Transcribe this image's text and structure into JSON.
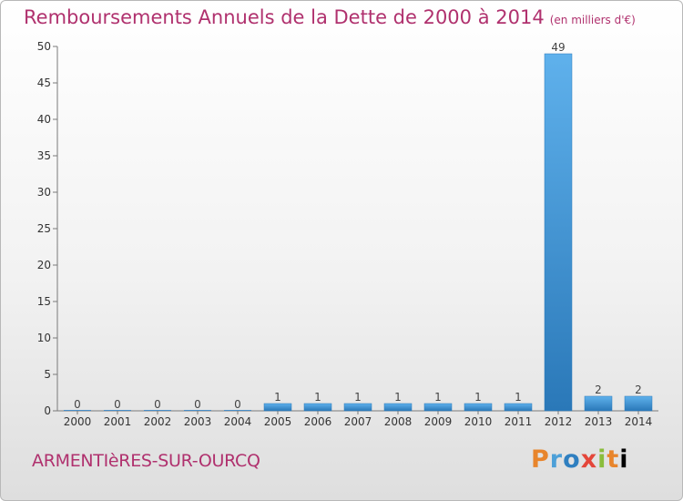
{
  "title": "Remboursements Annuels de la Dette de 2000 à 2014",
  "subtitle": "(en milliers d'€)",
  "commune": "ARMENTIèRES-SUR-OURCQ",
  "logo_text": "Proxiti",
  "colors": {
    "title": "#b0316e",
    "bar_light": "#5fb1ec",
    "bar_dark": "#2a78b8"
  },
  "chart_data": {
    "type": "bar",
    "categories": [
      "2000",
      "2001",
      "2002",
      "2003",
      "2004",
      "2005",
      "2006",
      "2007",
      "2008",
      "2009",
      "2010",
      "2011",
      "2012",
      "2013",
      "2014"
    ],
    "values": [
      0,
      0,
      0,
      0,
      0,
      1,
      1,
      1,
      1,
      1,
      1,
      1,
      49,
      2,
      2
    ],
    "ylim": [
      0,
      50
    ],
    "yticks": [
      0,
      5,
      10,
      15,
      20,
      25,
      30,
      35,
      40,
      45,
      50
    ],
    "grid": false
  }
}
